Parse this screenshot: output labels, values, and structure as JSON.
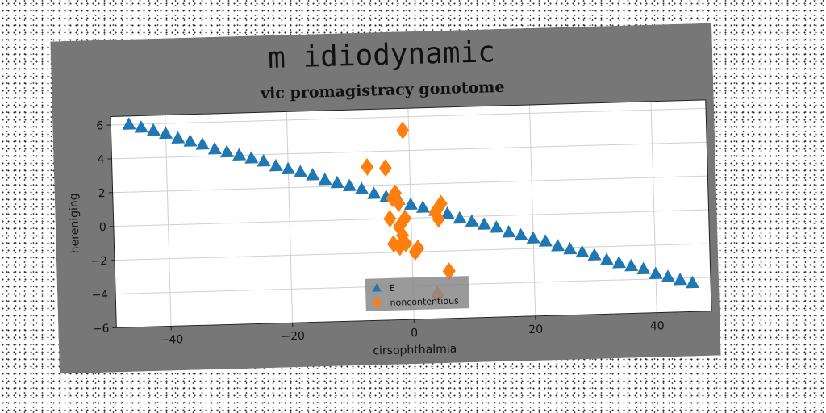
{
  "figure": {
    "suptitle": "m idiodynamic",
    "background": "#777777"
  },
  "chart_data": {
    "type": "scatter",
    "title": "vic promagistracy gonotome",
    "xlabel": "cirsophthalmia",
    "ylabel": "hereniging",
    "xlim": [
      -49,
      49
    ],
    "ylim": [
      -6,
      6.5
    ],
    "xticks": [
      -40,
      -20,
      0,
      20,
      40
    ],
    "xtick_labels": [
      "−40",
      "−20",
      "0",
      "20",
      "40"
    ],
    "yticks": [
      -6,
      -4,
      -2,
      0,
      2,
      4,
      6
    ],
    "ytick_labels": [
      "−6",
      "−4",
      "−2",
      "0",
      "2",
      "4",
      "6"
    ],
    "grid": true,
    "legend_position": "lower-center",
    "series": [
      {
        "name": "E",
        "marker": "triangle",
        "color": "#1f77b4",
        "x": [
          -46,
          -44,
          -42,
          -40,
          -38,
          -36,
          -34,
          -32,
          -30,
          -28,
          -26,
          -24,
          -22,
          -20,
          -18,
          -16,
          -14,
          -12,
          -10,
          -8,
          -6,
          -4,
          -2,
          0,
          2,
          4,
          6,
          8,
          10,
          12,
          14,
          16,
          18,
          20,
          22,
          24,
          26,
          28,
          30,
          32,
          34,
          36,
          38,
          40,
          42,
          44,
          46
        ],
        "y": [
          6.0,
          5.8,
          5.6,
          5.4,
          5.1,
          4.9,
          4.7,
          4.4,
          4.2,
          4.0,
          3.8,
          3.6,
          3.3,
          3.1,
          2.9,
          2.7,
          2.4,
          2.2,
          2.0,
          1.8,
          1.5,
          1.3,
          1.1,
          0.8,
          0.6,
          0.4,
          0.2,
          -0.1,
          -0.3,
          -0.5,
          -0.7,
          -1.0,
          -1.2,
          -1.4,
          -1.6,
          -1.9,
          -2.1,
          -2.3,
          -2.5,
          -2.8,
          -3.0,
          -3.2,
          -3.4,
          -3.7,
          -3.9,
          -4.1,
          -4.3
        ]
      },
      {
        "name": "noncontentious",
        "marker": "diamond",
        "color": "#ff7f0e",
        "x": [
          -1,
          -7,
          -4,
          -3,
          -2.5,
          -2,
          -3.5,
          -2,
          -1,
          -1.5,
          -3,
          -2,
          -1,
          0.5,
          1,
          4,
          4.5,
          5,
          6,
          4
        ],
        "y": [
          5.2,
          3.1,
          3.0,
          1.2,
          1.5,
          0.9,
          0.0,
          -0.5,
          0.0,
          -1.0,
          -1.5,
          -1.7,
          -1.5,
          -2.0,
          -1.8,
          0.3,
          -0.1,
          0.8,
          -3.2,
          -4.6
        ]
      }
    ]
  }
}
